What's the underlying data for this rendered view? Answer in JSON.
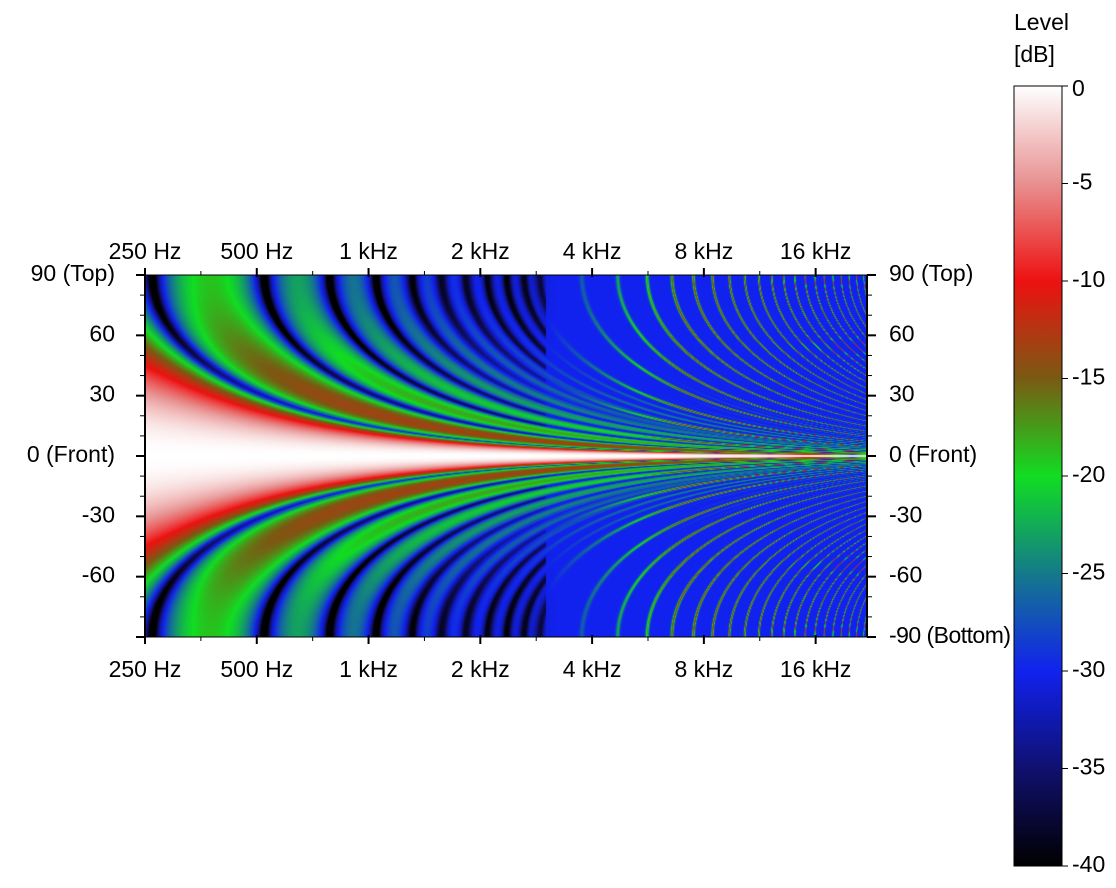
{
  "chart_data": {
    "type": "heatmap",
    "title": "",
    "x_axis": {
      "scale": "log2",
      "range_hz": [
        250,
        22000
      ],
      "ticks": [
        {
          "value": 250,
          "label": "250 Hz"
        },
        {
          "value": 500,
          "label": "500 Hz"
        },
        {
          "value": 1000,
          "label": "1 kHz"
        },
        {
          "value": 2000,
          "label": "2 kHz"
        },
        {
          "value": 4000,
          "label": "4 kHz"
        },
        {
          "value": 8000,
          "label": "8 kHz"
        },
        {
          "value": 16000,
          "label": "16 kHz"
        }
      ]
    },
    "y_axis": {
      "range_deg": [
        -90,
        90
      ],
      "ticks": [
        {
          "value": 90,
          "left_label": "90 (Top)",
          "right_label": "90 (Top)"
        },
        {
          "value": 60,
          "left_label": "60",
          "right_label": "60"
        },
        {
          "value": 30,
          "left_label": "30",
          "right_label": "30"
        },
        {
          "value": 0,
          "left_label": "0 (Front)",
          "right_label": "0 (Front)"
        },
        {
          "value": -30,
          "left_label": "-30",
          "right_label": "-30"
        },
        {
          "value": -60,
          "left_label": "-60",
          "right_label": "-60"
        },
        {
          "value": -90,
          "left_label": "",
          "right_label": "-90 (Bottom)"
        }
      ]
    },
    "colorbar": {
      "title_line1": "Level",
      "title_line2": "[dB]",
      "range_db": [
        -40,
        0
      ],
      "ticks": [
        {
          "value": 0,
          "label": "0"
        },
        {
          "value": -5,
          "label": "-5"
        },
        {
          "value": -10,
          "label": "-10"
        },
        {
          "value": -15,
          "label": "-15"
        },
        {
          "value": -20,
          "label": "-20"
        },
        {
          "value": -25,
          "label": "-25"
        },
        {
          "value": -30,
          "label": "-30"
        },
        {
          "value": -35,
          "label": "-35"
        },
        {
          "value": -40,
          "label": "-40"
        }
      ],
      "stops": [
        {
          "db": 0,
          "color": "#ffffff"
        },
        {
          "db": -5,
          "color": "#e89090"
        },
        {
          "db": -10,
          "color": "#ee1111"
        },
        {
          "db": -15,
          "color": "#7a5a12"
        },
        {
          "db": -20,
          "color": "#11dd22"
        },
        {
          "db": -25,
          "color": "#147a8a"
        },
        {
          "db": -30,
          "color": "#1122ee"
        },
        {
          "db": -35,
          "color": "#101070"
        },
        {
          "db": -40,
          "color": "#000000"
        }
      ]
    },
    "model": {
      "description_free": true,
      "main_lobe_width_deg_at_250hz": 42,
      "high_freq_array_spacing_factor": 3.2
    }
  }
}
